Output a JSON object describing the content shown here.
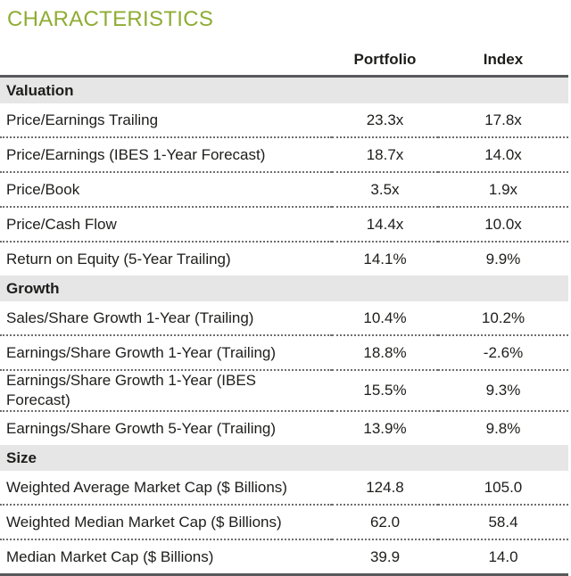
{
  "title": "CHARACTERISTICS",
  "colors": {
    "title_green": "#8FAD33",
    "section_band_bg": "#E6E6E6",
    "rule_dark": "#58595B",
    "dotted_separator": "#6E6E6E",
    "text": "#1D1D1B"
  },
  "table": {
    "columns": {
      "portfolio": "Portfolio",
      "index": "Index"
    },
    "sections": [
      {
        "name": "Valuation",
        "rows": [
          {
            "label": "Price/Earnings Trailing",
            "portfolio": "23.3x",
            "index": "17.8x"
          },
          {
            "label": "Price/Earnings (IBES 1-Year Forecast)",
            "portfolio": "18.7x",
            "index": "14.0x"
          },
          {
            "label": "Price/Book",
            "portfolio": "3.5x",
            "index": "1.9x"
          },
          {
            "label": "Price/Cash Flow",
            "portfolio": "14.4x",
            "index": "10.0x"
          },
          {
            "label": "Return on Equity (5-Year Trailing)",
            "portfolio": "14.1%",
            "index": "9.9%"
          }
        ]
      },
      {
        "name": "Growth",
        "rows": [
          {
            "label": "Sales/Share Growth 1-Year (Trailing)",
            "portfolio": "10.4%",
            "index": "10.2%"
          },
          {
            "label": "Earnings/Share Growth 1-Year (Trailing)",
            "portfolio": "18.8%",
            "index": "-2.6%"
          },
          {
            "label": "Earnings/Share Growth 1-Year (IBES Forecast)",
            "portfolio": "15.5%",
            "index": "9.3%"
          },
          {
            "label": "Earnings/Share Growth 5-Year (Trailing)",
            "portfolio": "13.9%",
            "index": "9.8%"
          }
        ]
      },
      {
        "name": "Size",
        "rows": [
          {
            "label": "Weighted Average Market Cap ($ Billions)",
            "portfolio": "124.8",
            "index": "105.0"
          },
          {
            "label": "Weighted Median Market Cap ($ Billions)",
            "portfolio": "62.0",
            "index": "58.4"
          },
          {
            "label": "Median Market Cap ($ Billions)",
            "portfolio": "39.9",
            "index": "14.0"
          }
        ]
      }
    ]
  }
}
